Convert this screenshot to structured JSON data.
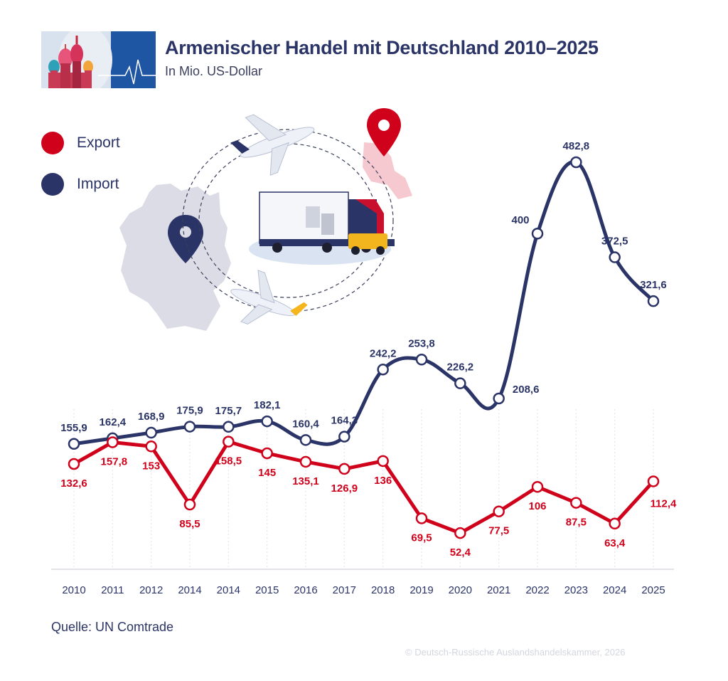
{
  "header": {
    "title": "Armenischer Handel mit Deutschland 2010–2025",
    "subtitle": "In Mio. US-Dollar",
    "logo_icon": "onion-domes-heartbeat-logo"
  },
  "legend": [
    {
      "label": "Export",
      "color": "#d0021b"
    },
    {
      "label": "Import",
      "color": "#2b3467"
    }
  ],
  "illustration": {
    "icon": "germany-armenia-logistics-illustration"
  },
  "chart_data": {
    "type": "line",
    "title": "Armenischer Handel mit Deutschland 2010–2025",
    "subtitle": "In Mio. US-Dollar",
    "categories": [
      "2010",
      "2011",
      "2012",
      "2014",
      "2014",
      "2015",
      "2016",
      "2017",
      "2018",
      "2019",
      "2020",
      "2021",
      "2022",
      "2023",
      "2024",
      "2025"
    ],
    "series": [
      {
        "name": "Import",
        "color": "#2b3467",
        "values": [
          155.9,
          162.4,
          168.9,
          175.9,
          175.7,
          182.1,
          160.4,
          164.3,
          242.2,
          253.8,
          226.2,
          208.6,
          400,
          482.8,
          372.5,
          321.6
        ],
        "labels": [
          "155,9",
          "162,4",
          "168,9",
          "175,9",
          "175,7",
          "182,1",
          "160,4",
          "164,3",
          "242,2",
          "253,8",
          "226,2",
          "208,6",
          "400",
          "482,8",
          "372,5",
          "321,6"
        ]
      },
      {
        "name": "Export",
        "color": "#d0021b",
        "values": [
          132.6,
          157.8,
          153,
          85.5,
          158.5,
          145,
          135.1,
          126.9,
          136,
          69.5,
          52.4,
          77.5,
          106,
          87.5,
          63.4,
          112.4
        ],
        "labels": [
          "132,6",
          "157,8",
          "153",
          "85,5",
          "158,5",
          "145",
          "135,1",
          "126,9",
          "136",
          "69,5",
          "52,4",
          "77,5",
          "106",
          "87,5",
          "63,4",
          "112,4"
        ]
      }
    ],
    "grid": "vertical dotted",
    "legend_position": "top-left"
  },
  "footer": {
    "source": "Quelle: UN Comtrade",
    "copyright": "© Deutsch-Russische Auslandshandelskammer, 2026"
  }
}
